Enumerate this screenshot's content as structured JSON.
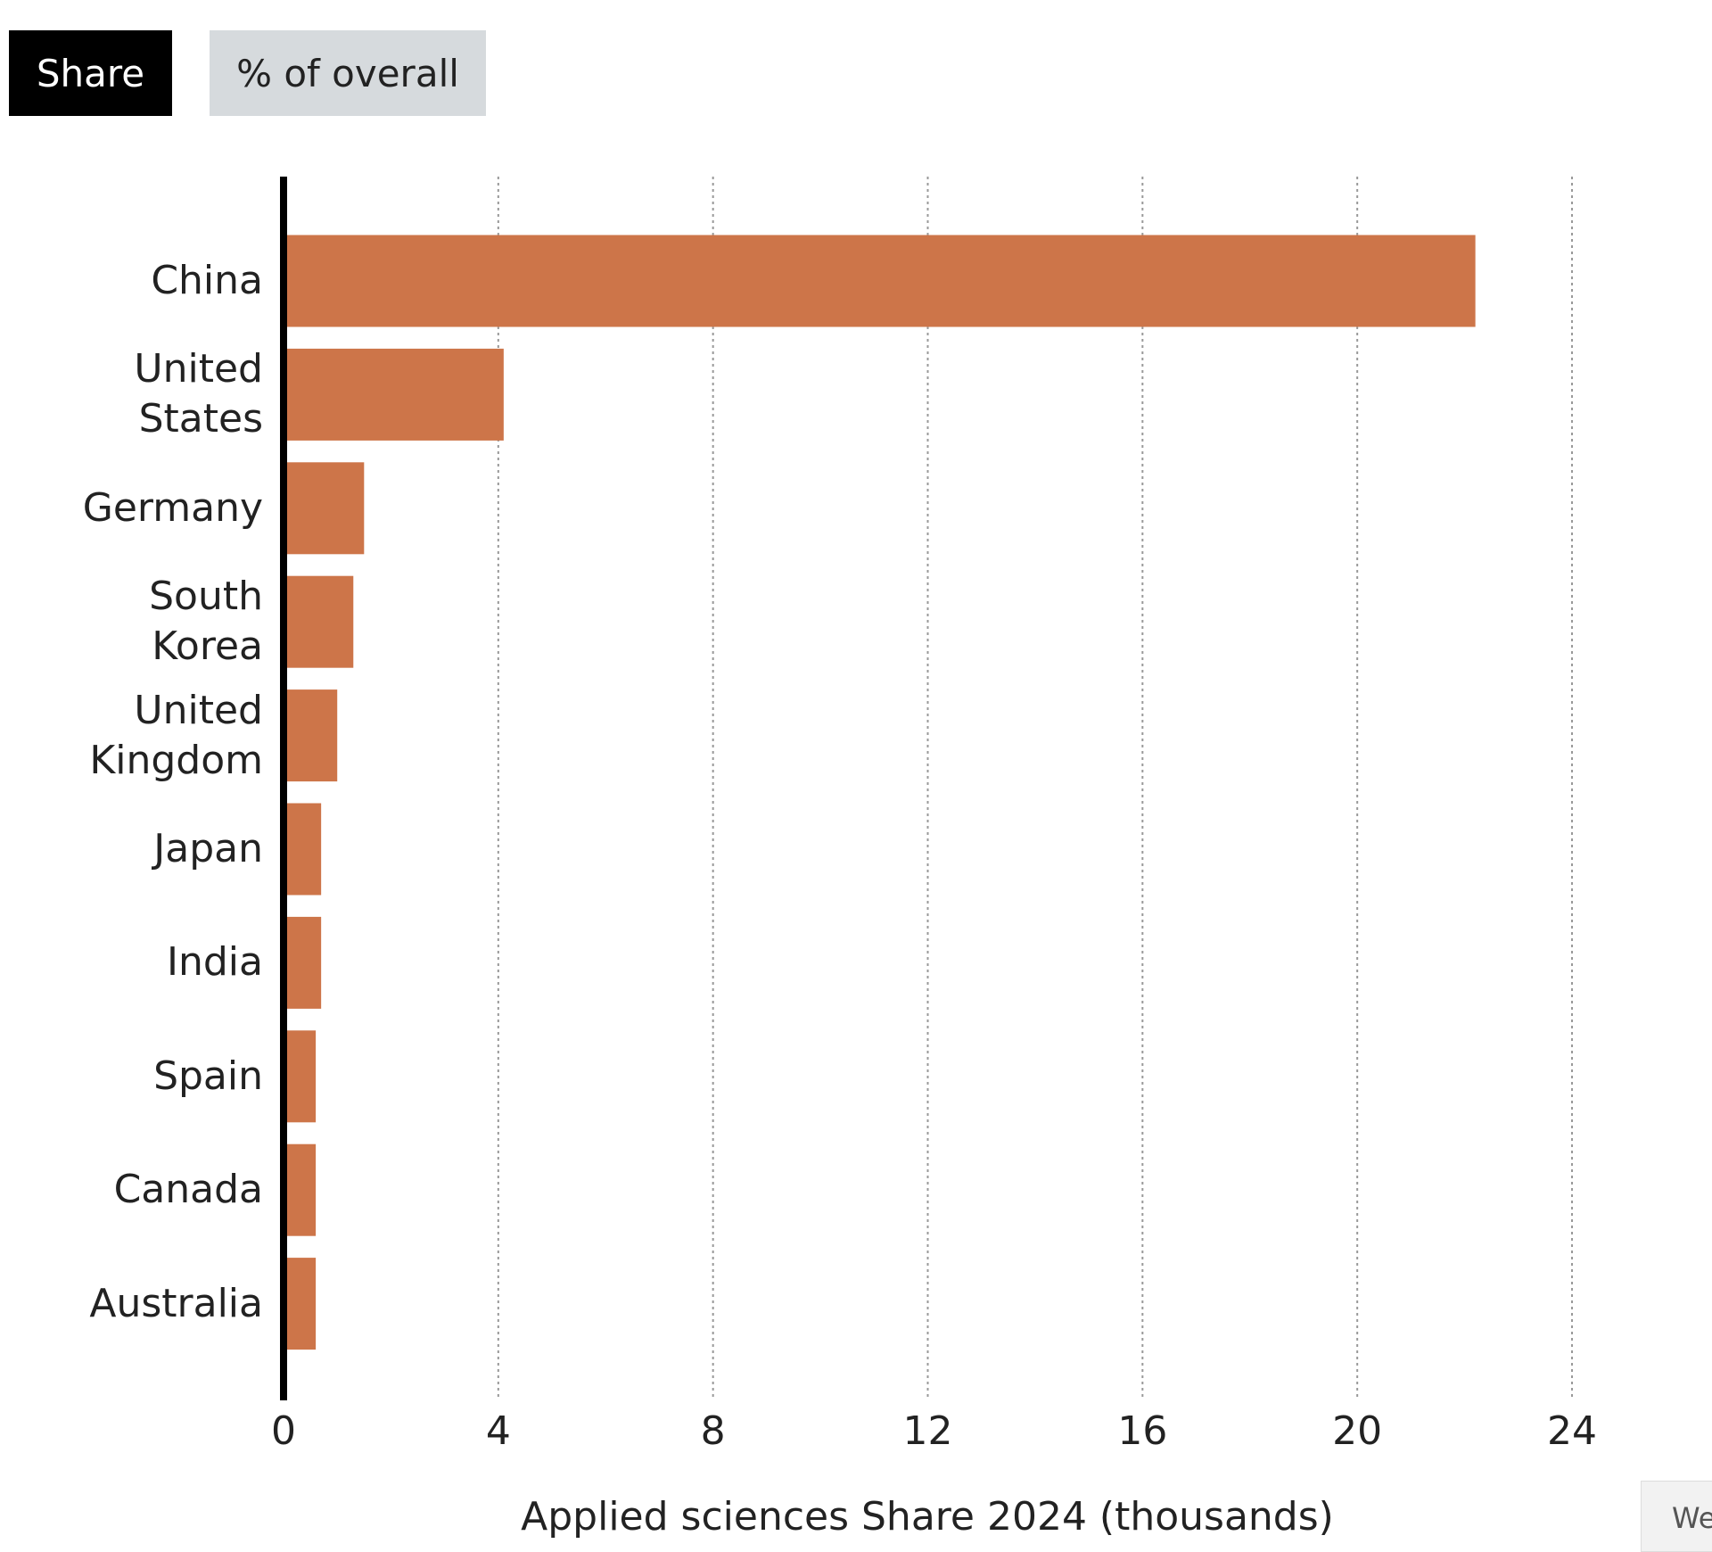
{
  "controls": {
    "buttons": [
      "Share",
      "% of overall"
    ],
    "corner_button": "We"
  },
  "chart_data": {
    "type": "bar",
    "orientation": "horizontal",
    "x_label": "Applied sciences Share 2024 (thousands)",
    "categories": [
      "China",
      "United States",
      "Germany",
      "South Korea",
      "United Kingdom",
      "Japan",
      "India",
      "Spain",
      "Canada",
      "Australia"
    ],
    "values": [
      22.2,
      4.1,
      1.5,
      1.3,
      1.0,
      0.7,
      0.7,
      0.6,
      0.6,
      0.6
    ],
    "color": "#cd7549",
    "xlim": [
      0,
      24
    ],
    "xticks": [
      0,
      4,
      8,
      12,
      16,
      20,
      24
    ],
    "grid": true
  }
}
